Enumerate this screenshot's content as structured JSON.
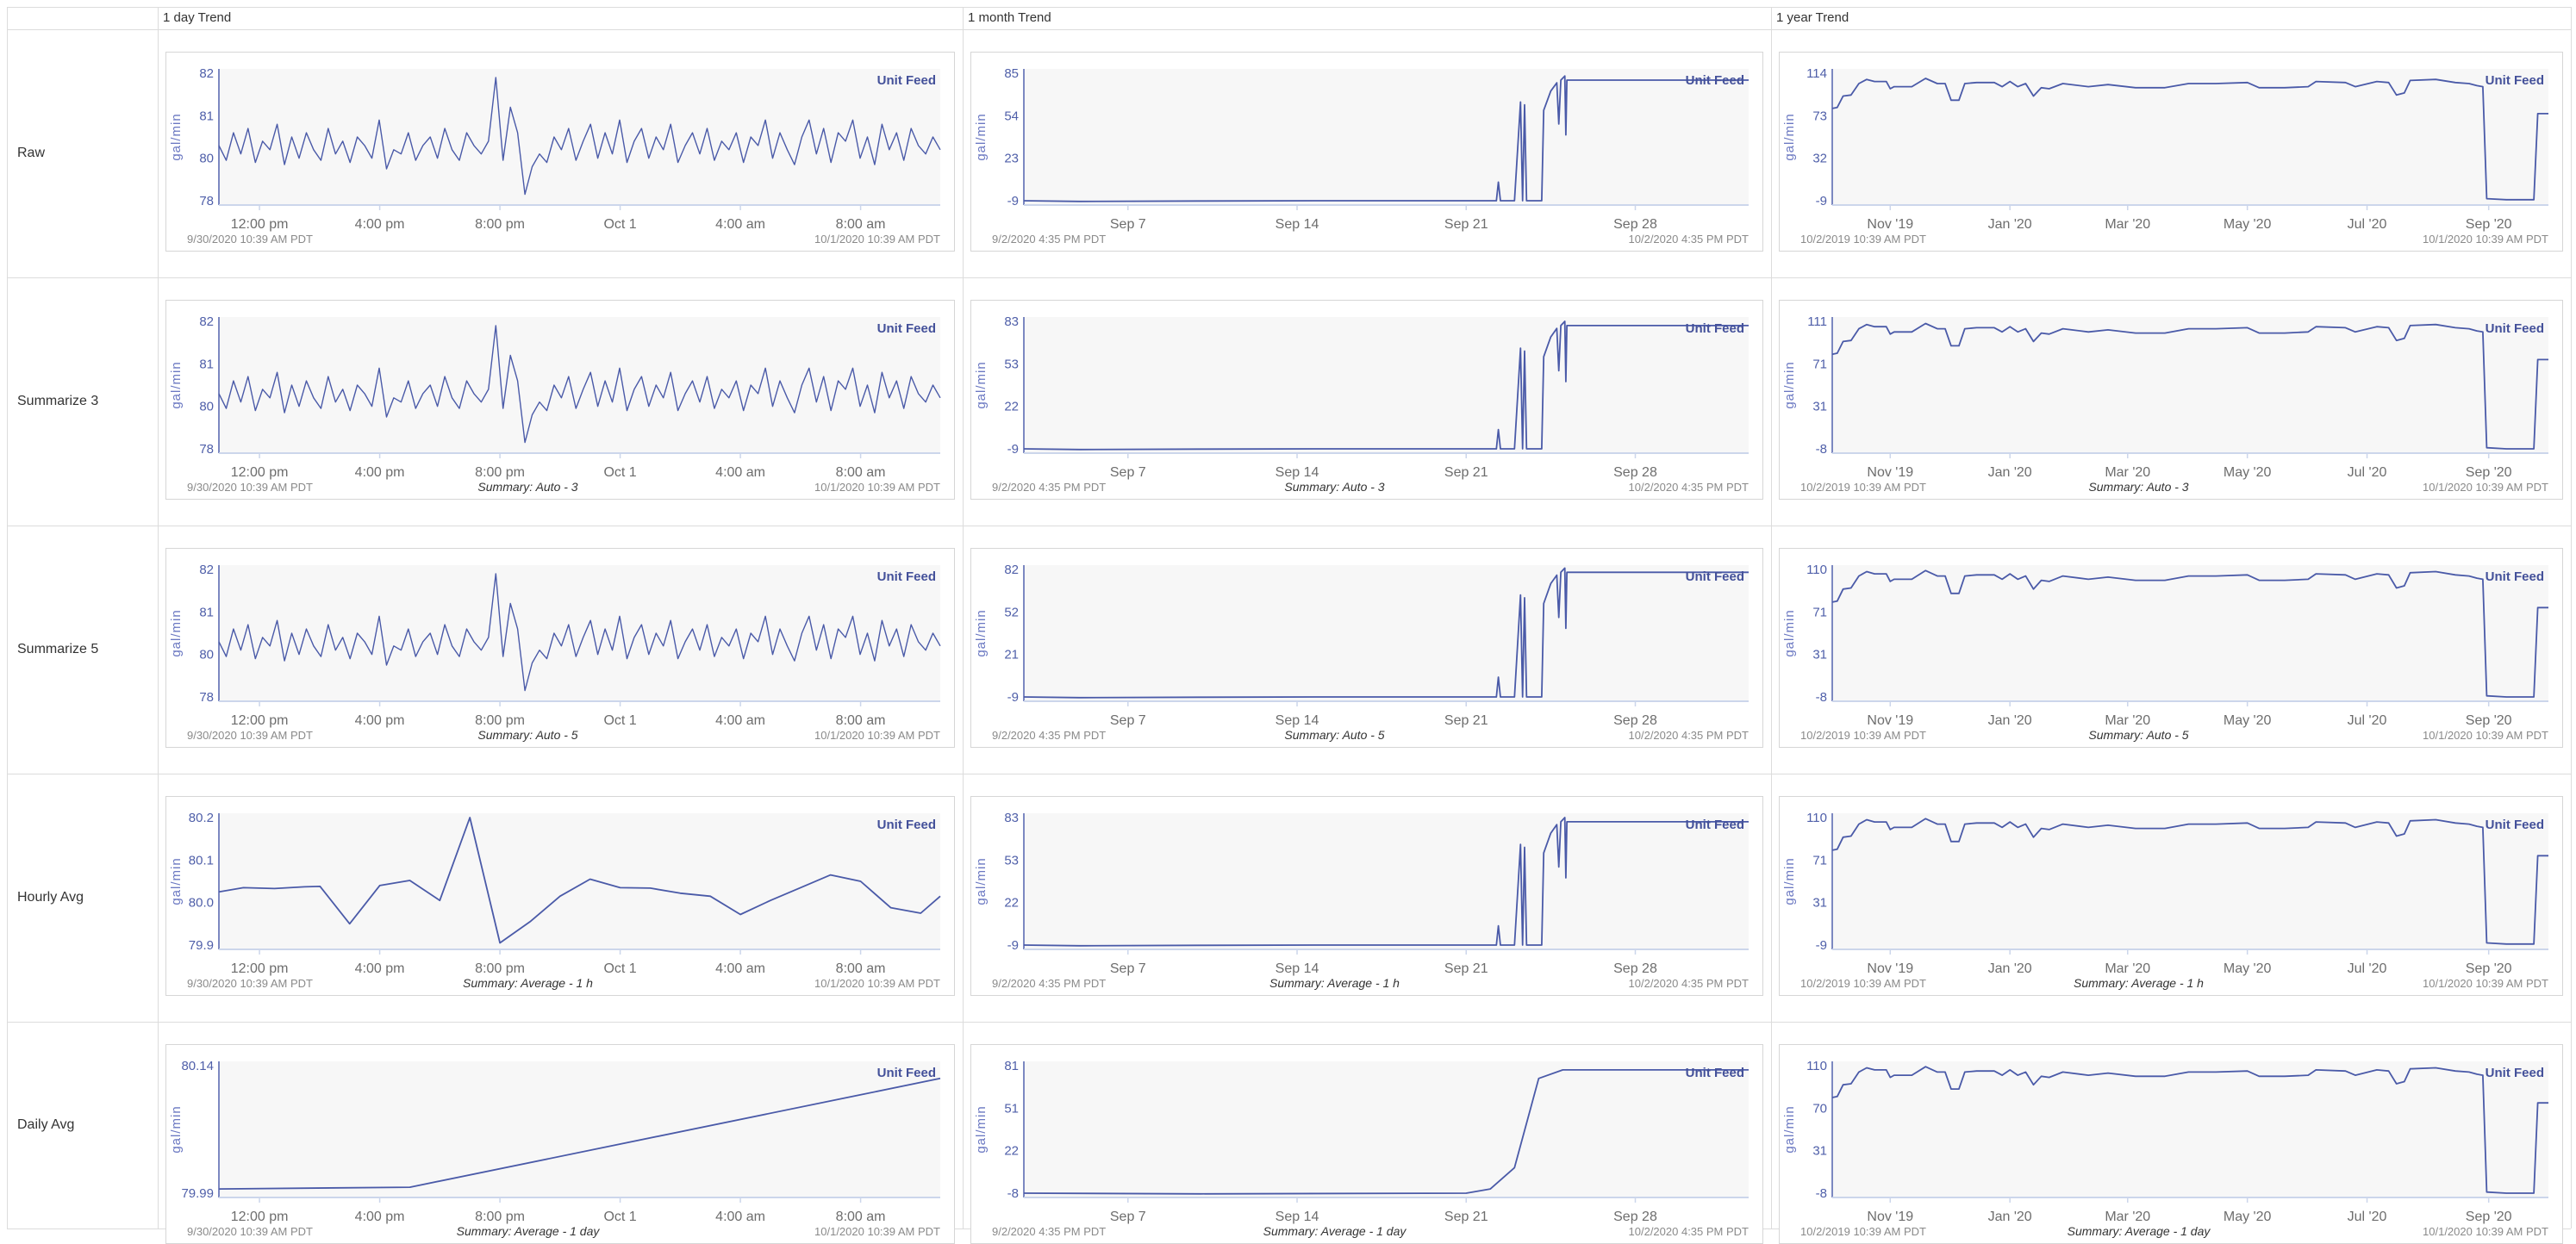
{
  "header": {
    "columns": [
      "1 day Trend",
      "1 month Trend",
      "1 year Trend"
    ]
  },
  "rows": [
    {
      "label": "Raw",
      "summary": ""
    },
    {
      "label": "Summarize 3",
      "summary": "Summary: Auto - 3"
    },
    {
      "label": "Summarize 5",
      "summary": "Summary: Auto - 5"
    },
    {
      "label": "Hourly Avg",
      "summary": "Summary: Average - 1 h"
    },
    {
      "label": "Daily Avg",
      "summary": "Summary: Average - 1 day"
    }
  ],
  "colors": {
    "line": "#4a5aa8",
    "plot_background": "#f7f7f7",
    "axis": "#ccd6eb",
    "legend": "#44519a"
  },
  "chart_data": {
    "type": "line",
    "series_name": "Unit Feed",
    "ylabel": "gal/min",
    "legend": "top-right",
    "grid": false,
    "columns": [
      {
        "range": [
          "2020-09-30 10:39",
          "2020-10-01 10:39"
        ],
        "start_label": "9/30/2020 10:39 AM PDT",
        "end_label": "10/1/2020 10:39 AM PDT",
        "xticks": [
          {
            "label": "12:00 pm",
            "at": "2020-09-30 12:00"
          },
          {
            "label": "4:00 pm",
            "at": "2020-09-30 16:00"
          },
          {
            "label": "8:00 pm",
            "at": "2020-09-30 20:00"
          },
          {
            "label": "Oct 1",
            "at": "2020-10-01 00:00"
          },
          {
            "label": "4:00 am",
            "at": "2020-10-01 04:00"
          },
          {
            "label": "8:00 am",
            "at": "2020-10-01 08:00"
          }
        ]
      },
      {
        "range": [
          "2020-09-02 16:35",
          "2020-10-02 16:35"
        ],
        "start_label": "9/2/2020 4:35 PM PDT",
        "end_label": "10/2/2020 4:35 PM PDT",
        "xticks": [
          {
            "label": "Sep 7",
            "at": "2020-09-07 00:00"
          },
          {
            "label": "Sep 14",
            "at": "2020-09-14 00:00"
          },
          {
            "label": "Sep 21",
            "at": "2020-09-21 00:00"
          },
          {
            "label": "Sep 28",
            "at": "2020-09-28 00:00"
          }
        ]
      },
      {
        "range": [
          "2019-10-02 10:39",
          "2020-10-01 10:39"
        ],
        "start_label": "10/2/2019 10:39 AM PDT",
        "end_label": "10/1/2020 10:39 AM PDT",
        "xticks": [
          {
            "label": "Nov '19",
            "at": "2019-11-01 00:00"
          },
          {
            "label": "Jan '20",
            "at": "2020-01-01 00:00"
          },
          {
            "label": "Mar '20",
            "at": "2020-03-01 00:00"
          },
          {
            "label": "May '20",
            "at": "2020-05-01 00:00"
          },
          {
            "label": "Jul '20",
            "at": "2020-07-01 00:00"
          },
          {
            "label": "Sep '20",
            "at": "2020-09-01 00:00"
          }
        ]
      }
    ],
    "datasets": {
      "day_raw": {
        "values": [
          80.3,
          79.9,
          80.6,
          80.1,
          80.7,
          79.8,
          80.4,
          80.2,
          80.8,
          79.7,
          80.5,
          80.0,
          80.6,
          80.2,
          79.9,
          80.7,
          80.1,
          80.4,
          79.8,
          80.5,
          80.3,
          80.0,
          80.9,
          79.5,
          80.2,
          80.1,
          80.6,
          79.9,
          80.3,
          80.5,
          80.0,
          80.7,
          80.2,
          79.9,
          80.6,
          80.3,
          80.1,
          80.4,
          81.9,
          79.9,
          81.2,
          80.6,
          78.3,
          79.6,
          80.1,
          79.8,
          80.5,
          80.2,
          80.7,
          79.9,
          80.4,
          80.8,
          80.0,
          80.6,
          80.1,
          80.9,
          79.8,
          80.4,
          80.7,
          80.0,
          80.5,
          80.2,
          80.8,
          79.8,
          80.3,
          80.6,
          80.1,
          80.7,
          79.9,
          80.4,
          80.2,
          80.6,
          79.8,
          80.5,
          80.3,
          80.9,
          80.0,
          80.6,
          80.2,
          79.7,
          80.5,
          80.9,
          80.1,
          80.7,
          79.8,
          80.6,
          80.4,
          80.9,
          80.0,
          80.5,
          79.7,
          80.8,
          80.2,
          80.6,
          79.9,
          80.7,
          80.3,
          80.1,
          80.5,
          80.2
        ]
      },
      "day_hourly": {
        "points": [
          [
            "2020-09-30 10:39",
            80.025
          ],
          [
            "2020-09-30 11:28",
            80.035
          ],
          [
            "2020-09-30 12:30",
            80.033
          ],
          [
            "2020-09-30 13:30",
            80.037
          ],
          [
            "2020-09-30 14:01",
            80.038
          ],
          [
            "2020-09-30 15:00",
            79.95
          ],
          [
            "2020-09-30 16:00",
            80.04
          ],
          [
            "2020-09-30 17:00",
            80.052
          ],
          [
            "2020-09-30 18:00",
            80.005
          ],
          [
            "2020-09-30 19:00",
            80.2
          ],
          [
            "2020-09-30 20:00",
            79.905
          ],
          [
            "2020-09-30 21:00",
            79.955
          ],
          [
            "2020-09-30 22:00",
            80.015
          ],
          [
            "2020-09-30 23:00",
            80.055
          ],
          [
            "2020-10-01 00:00",
            80.035
          ],
          [
            "2020-10-01 01:00",
            80.034
          ],
          [
            "2020-10-01 02:00",
            80.022
          ],
          [
            "2020-10-01 03:00",
            80.015
          ],
          [
            "2020-10-01 04:00",
            79.972
          ],
          [
            "2020-10-01 05:00",
            80.005
          ],
          [
            "2020-10-01 06:00",
            80.035
          ],
          [
            "2020-10-01 07:00",
            80.065
          ],
          [
            "2020-10-01 08:00",
            80.05
          ],
          [
            "2020-10-01 09:00",
            79.988
          ],
          [
            "2020-10-01 10:00",
            79.975
          ],
          [
            "2020-10-01 10:39",
            80.015
          ]
        ]
      },
      "day_daily": {
        "points": [
          [
            "2020-09-30 10:39",
            79.995
          ],
          [
            "2020-09-30 17:00",
            79.997
          ],
          [
            "2020-10-01 10:39",
            80.125
          ]
        ]
      },
      "month_raw": {
        "points": [
          [
            "2020-09-02 16:35",
            -9
          ],
          [
            "2020-09-05 00:00",
            -9.5
          ],
          [
            "2020-09-10 00:00",
            -9.2
          ],
          [
            "2020-09-15 00:00",
            -9
          ],
          [
            "2020-09-20 00:00",
            -9
          ],
          [
            "2020-09-22 06:00",
            -9
          ],
          [
            "2020-09-22 08:00",
            5
          ],
          [
            "2020-09-22 10:00",
            -9
          ],
          [
            "2020-09-23 00:00",
            -9
          ],
          [
            "2020-09-23 06:00",
            64
          ],
          [
            "2020-09-23 08:00",
            -9
          ],
          [
            "2020-09-23 10:00",
            62
          ],
          [
            "2020-09-23 12:00",
            -9
          ],
          [
            "2020-09-24 03:00",
            -9
          ],
          [
            "2020-09-24 05:00",
            58
          ],
          [
            "2020-09-24 12:00",
            72
          ],
          [
            "2020-09-24 18:00",
            78
          ],
          [
            "2020-09-24 20:00",
            48
          ],
          [
            "2020-09-24 22:00",
            80
          ],
          [
            "2020-09-25 02:00",
            83
          ],
          [
            "2020-09-25 03:00",
            40
          ],
          [
            "2020-09-25 04:00",
            80
          ],
          [
            "2020-10-02 16:35",
            80
          ]
        ]
      },
      "month_daily": {
        "points": [
          [
            "2020-09-02 16:35",
            -8
          ],
          [
            "2020-09-10 00:00",
            -8.5
          ],
          [
            "2020-09-21 00:00",
            -8
          ],
          [
            "2020-09-22 00:00",
            -5
          ],
          [
            "2020-09-23 00:00",
            10
          ],
          [
            "2020-09-24 00:00",
            72
          ],
          [
            "2020-09-25 00:00",
            78
          ],
          [
            "2020-10-02 16:35",
            78
          ]
        ]
      },
      "year": {
        "points": [
          [
            "2019-10-02 10:39",
            80
          ],
          [
            "2019-10-05 00:00",
            81
          ],
          [
            "2019-10-08 00:00",
            92
          ],
          [
            "2019-10-12 00:00",
            93
          ],
          [
            "2019-10-16 00:00",
            104
          ],
          [
            "2019-10-20 00:00",
            108
          ],
          [
            "2019-10-24 00:00",
            106
          ],
          [
            "2019-10-30 00:00",
            106
          ],
          [
            "2019-11-01 00:00",
            99
          ],
          [
            "2019-11-03 00:00",
            101
          ],
          [
            "2019-11-12 00:00",
            101
          ],
          [
            "2019-11-19 00:00",
            109
          ],
          [
            "2019-11-25 00:00",
            104
          ],
          [
            "2019-11-29 00:00",
            104
          ],
          [
            "2019-12-02 00:00",
            88
          ],
          [
            "2019-12-06 00:00",
            88
          ],
          [
            "2019-12-09 00:00",
            104
          ],
          [
            "2019-12-15 00:00",
            105
          ],
          [
            "2019-12-24 00:00",
            105
          ],
          [
            "2019-12-28 00:00",
            101
          ],
          [
            "2020-01-01 00:00",
            106
          ],
          [
            "2020-01-05 00:00",
            101
          ],
          [
            "2020-01-09 00:00",
            104
          ],
          [
            "2020-01-13 00:00",
            92
          ],
          [
            "2020-01-17 00:00",
            100
          ],
          [
            "2020-01-21 00:00",
            99
          ],
          [
            "2020-01-28 00:00",
            104
          ],
          [
            "2020-02-10 00:00",
            101
          ],
          [
            "2020-02-20 00:00",
            103
          ],
          [
            "2020-03-05 00:00",
            100
          ],
          [
            "2020-03-20 00:00",
            100
          ],
          [
            "2020-04-01 00:00",
            104
          ],
          [
            "2020-04-15 00:00",
            104
          ],
          [
            "2020-05-01 00:00",
            105
          ],
          [
            "2020-05-07 00:00",
            100
          ],
          [
            "2020-05-20 00:00",
            100
          ],
          [
            "2020-06-01 00:00",
            101
          ],
          [
            "2020-06-05 00:00",
            106
          ],
          [
            "2020-06-20 00:00",
            105
          ],
          [
            "2020-06-25 00:00",
            101
          ],
          [
            "2020-07-06 00:00",
            106
          ],
          [
            "2020-07-12 00:00",
            105
          ],
          [
            "2020-07-16 00:00",
            93
          ],
          [
            "2020-07-20 00:00",
            95
          ],
          [
            "2020-07-23 00:00",
            107
          ],
          [
            "2020-08-05 00:00",
            108
          ],
          [
            "2020-08-15 00:00",
            105
          ],
          [
            "2020-08-22 00:00",
            104
          ],
          [
            "2020-08-26 00:00",
            102
          ],
          [
            "2020-08-29 00:00",
            101
          ],
          [
            "2020-08-31 00:00",
            -7
          ],
          [
            "2020-09-10 00:00",
            -8
          ],
          [
            "2020-09-24 00:00",
            -8
          ],
          [
            "2020-09-26 00:00",
            75
          ],
          [
            "2020-10-01 10:39",
            75
          ]
        ]
      }
    },
    "charts": [
      [
        {
          "dataset": "day_raw",
          "yticks": [
            "82",
            "81",
            "80",
            "78"
          ]
        },
        {
          "dataset": "month_raw",
          "yticks": [
            "85",
            "54",
            "23",
            "-9"
          ]
        },
        {
          "dataset": "year",
          "yticks": [
            "114",
            "73",
            "32",
            "-9"
          ]
        }
      ],
      [
        {
          "dataset": "day_raw",
          "yticks": [
            "82",
            "81",
            "80",
            "78"
          ]
        },
        {
          "dataset": "month_raw",
          "yticks": [
            "83",
            "53",
            "22",
            "-9"
          ]
        },
        {
          "dataset": "year",
          "yticks": [
            "111",
            "71",
            "31",
            "-8"
          ]
        }
      ],
      [
        {
          "dataset": "day_raw",
          "yticks": [
            "82",
            "81",
            "80",
            "78"
          ]
        },
        {
          "dataset": "month_raw",
          "yticks": [
            "82",
            "52",
            "21",
            "-9"
          ]
        },
        {
          "dataset": "year",
          "yticks": [
            "110",
            "71",
            "31",
            "-8"
          ]
        }
      ],
      [
        {
          "dataset": "day_hourly",
          "yticks": [
            "80.2",
            "80.1",
            "80.0",
            "79.9"
          ]
        },
        {
          "dataset": "month_raw",
          "yticks": [
            "83",
            "53",
            "22",
            "-9"
          ]
        },
        {
          "dataset": "year",
          "yticks": [
            "110",
            "71",
            "31",
            "-9"
          ]
        }
      ],
      [
        {
          "dataset": "day_daily",
          "yticks": [
            "80.14",
            "79.99"
          ]
        },
        {
          "dataset": "month_daily",
          "yticks": [
            "81",
            "51",
            "22",
            "-8"
          ]
        },
        {
          "dataset": "year",
          "yticks": [
            "110",
            "70",
            "31",
            "-8"
          ]
        }
      ]
    ]
  }
}
